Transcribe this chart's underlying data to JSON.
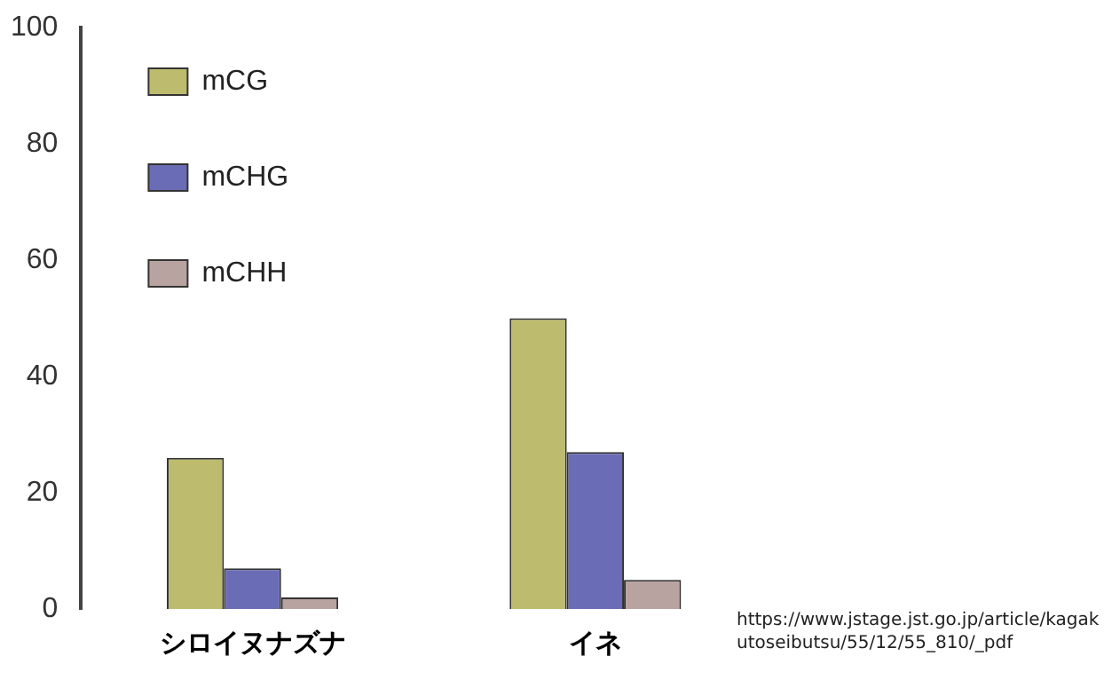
{
  "chart_data": {
    "type": "bar",
    "categories": [
      "シロイヌナズナ",
      "イネ"
    ],
    "series": [
      {
        "name": "mCG",
        "color": "#bdbb6e",
        "values": [
          26,
          50
        ]
      },
      {
        "name": "mCHG",
        "color": "#6a6cb5",
        "values": [
          7,
          27
        ]
      },
      {
        "name": "mCHH",
        "color": "#b9a3a0",
        "values": [
          2,
          5
        ]
      }
    ],
    "ylim": [
      0,
      100
    ],
    "yticks": [
      0,
      20,
      40,
      60,
      80,
      100
    ],
    "grid": false,
    "legend": "top left",
    "annotations": [
      "https://www.jstage.jst.go.jp/article/kagakutoseibutsu/55/12/55_810/_pdf"
    ]
  }
}
